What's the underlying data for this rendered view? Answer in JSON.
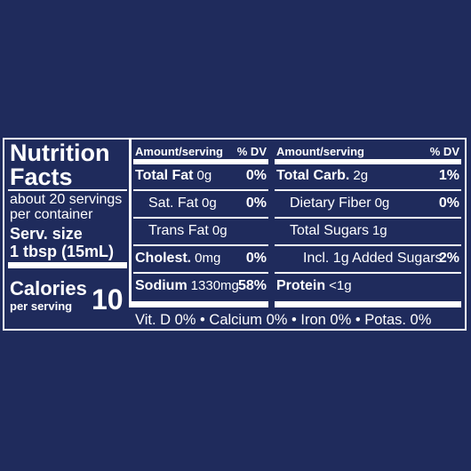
{
  "title_lines": [
    "Nutrition",
    "Facts"
  ],
  "servings_lines": [
    "about 20 servings",
    "per container"
  ],
  "serving_size": {
    "label": "Serv. size",
    "value": "1 tbsp (15mL)"
  },
  "calories": {
    "label": "Calories",
    "sub": "per serving",
    "value": "10"
  },
  "left_table": {
    "header": {
      "amount": "Amount/serving",
      "dv": "% DV"
    },
    "rows": [
      {
        "name": "Total Fat",
        "amount": "0g",
        "dv": "0%",
        "level": 0
      },
      {
        "name": "Sat. Fat",
        "amount": "0g",
        "dv": "0%",
        "level": 1
      },
      {
        "name": "Trans Fat",
        "amount": "0g",
        "level": 1
      },
      {
        "name": "Cholest.",
        "amount": "0mg",
        "dv": "0%",
        "level": 0
      },
      {
        "name": "Sodium",
        "amount": "1330mg",
        "dv": "58%",
        "level": 0
      }
    ]
  },
  "right_table": {
    "header": {
      "amount": "Amount/serving",
      "dv": "% DV"
    },
    "rows": [
      {
        "name": "Total Carb.",
        "amount": "2g",
        "dv": "1%",
        "level": 0
      },
      {
        "name": "Dietary Fiber",
        "amount": "0g",
        "dv": "0%",
        "level": 1
      },
      {
        "name": "Total Sugars",
        "amount": "1g",
        "level": 1
      },
      {
        "name": "Incl. 1g Added Sugars",
        "dv": "2%",
        "level": 2
      },
      {
        "name": "Protein",
        "amount": "<1g",
        "level": 0
      }
    ]
  },
  "footer": "Vit. D 0% • Calcium 0% • Iron 0% • Potas. 0%"
}
